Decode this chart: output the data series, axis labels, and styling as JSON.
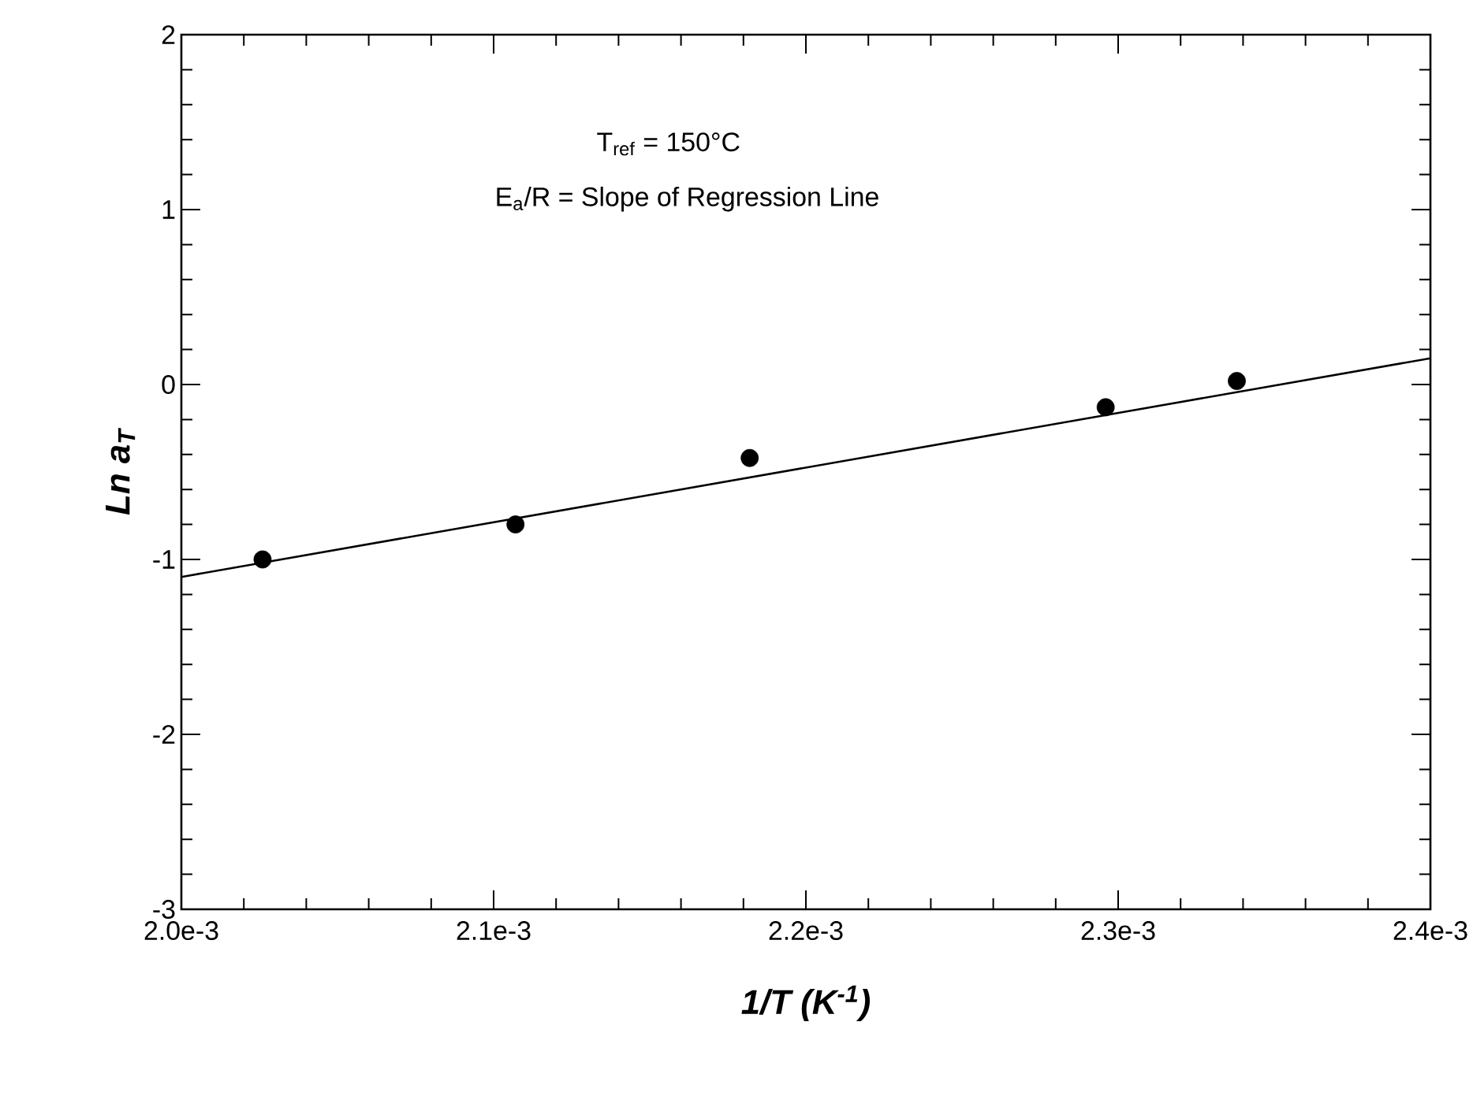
{
  "chart_data": {
    "type": "scatter",
    "xlabel": "1/T (K$^{-1}$)",
    "ylabel": "Ln a$_{T}$",
    "annotations": [
      "T$_{ref}$ = 150°C",
      "E$_{a}$/R = Slope of Regression Line"
    ],
    "series": [
      {
        "color": "#000000",
        "x": [
          0.002026,
          0.002107,
          0.002182,
          0.002296,
          0.002338
        ],
        "values": [
          -1.0,
          -0.8,
          -0.42,
          -0.13,
          0.02
        ]
      },
      {
        "type": "line",
        "color": "#000000",
        "line_style": "solid",
        "marker": "none",
        "x": [
          0.002,
          0.0024
        ],
        "values": [
          -1.1,
          0.15
        ]
      }
    ],
    "xlim": [
      0.002,
      0.0024
    ],
    "xticks": [
      {
        "value": 0.002,
        "label": "2.0e-3"
      },
      {
        "value": 0.0021,
        "label": "2.1e-3"
      },
      {
        "value": 0.0022,
        "label": "2.2e-3"
      },
      {
        "value": 0.0023,
        "label": "2.3e-3"
      },
      {
        "value": 0.0024,
        "label": "2.4e-3"
      }
    ],
    "ylim": [
      -3,
      2
    ],
    "yticks": [
      -3,
      -2,
      -1,
      0,
      1,
      2
    ],
    "grid": false
  }
}
